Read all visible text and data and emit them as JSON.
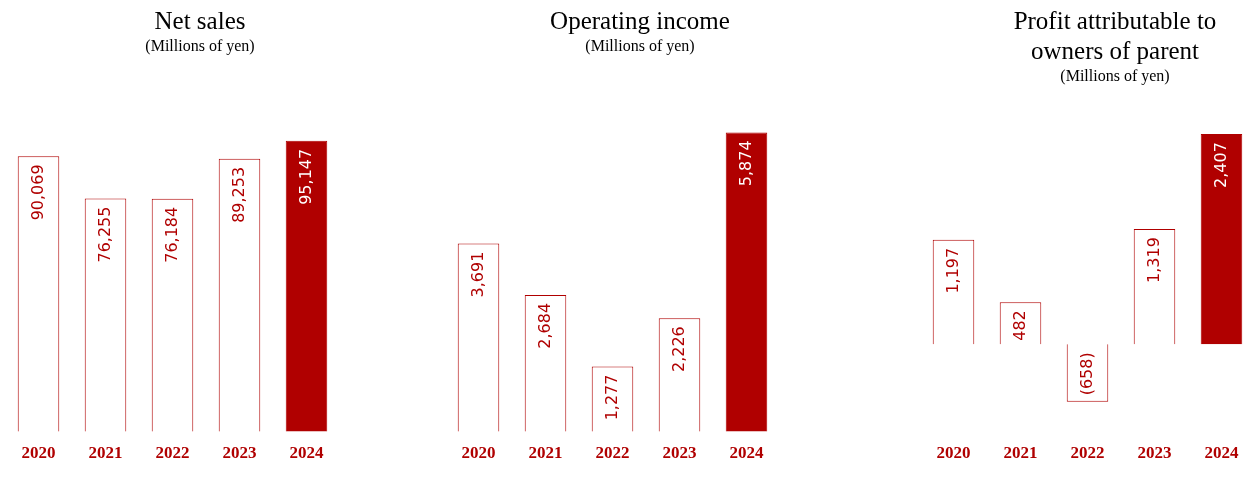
{
  "chart_data": [
    {
      "type": "bar",
      "title": "Net sales",
      "subtitle": "(Millions of yen)",
      "categories": [
        "2020",
        "2021",
        "2022",
        "2023",
        "2024"
      ],
      "values": [
        90069,
        76255,
        76184,
        89253,
        95147
      ],
      "color": "#b00000",
      "colors": [
        "#ffffff",
        "#ffffff",
        "#ffffff",
        "#ffffff",
        "#b00000"
      ],
      "value_labels": [
        "90,069",
        "76,255",
        "76,184",
        "89,253",
        "95,147"
      ],
      "tick_labels": "x"
    },
    {
      "type": "bar",
      "title": "Operating income",
      "subtitle": "(Millions of yen)",
      "categories": [
        "2020",
        "2021",
        "2022",
        "2023",
        "2024"
      ],
      "values": [
        3691,
        2684,
        1277,
        2226,
        5874
      ],
      "color": "#b00000",
      "colors": [
        "#ffffff",
        "#ffffff",
        "#ffffff",
        "#ffffff",
        "#b00000"
      ],
      "value_labels": [
        "3,691",
        "2,684",
        "1,277",
        "2,226",
        "5,874"
      ],
      "tick_labels": "x"
    },
    {
      "type": "bar",
      "title": "Profit attributable to owners of parent",
      "subtitle": "(Millions of yen)",
      "categories": [
        "2020",
        "2021",
        "2022",
        "2023",
        "2024"
      ],
      "values": [
        1197,
        482,
        -658,
        1319,
        2407
      ],
      "color": "#b00000",
      "colors": [
        "#ffffff",
        "#ffffff",
        "#ffffff",
        "#ffffff",
        "#b00000"
      ],
      "value_labels": [
        "1,197",
        "482",
        "(658)",
        "1,319",
        "2,407"
      ],
      "tick_labels": "x"
    }
  ]
}
